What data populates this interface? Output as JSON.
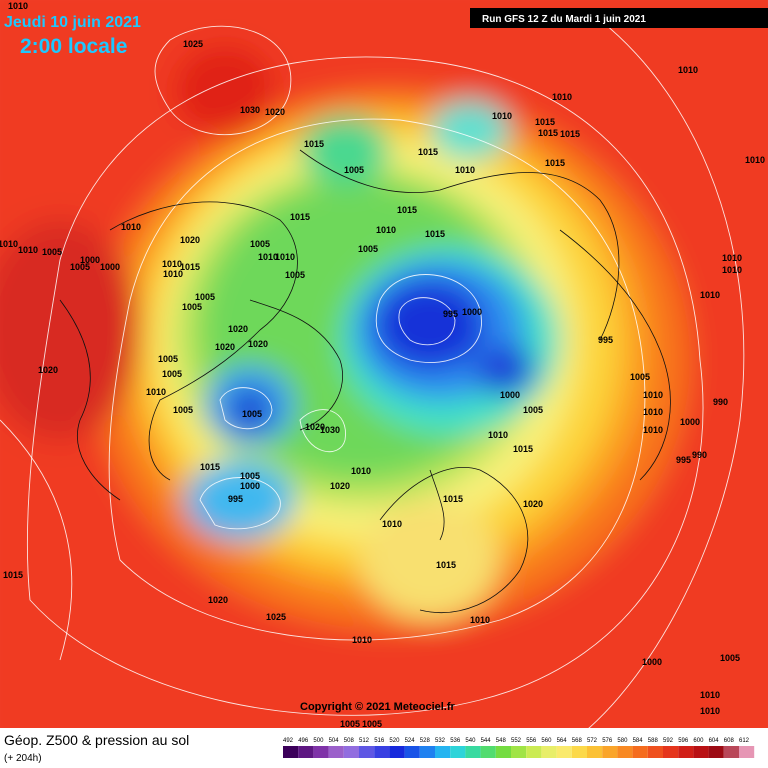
{
  "header": {
    "date": "Jeudi 10 juin 2021",
    "time": "2:00 locale",
    "run": "Run GFS 12 Z du Mardi 1 juin 2021"
  },
  "footer": {
    "title": "Géop. Z500 & pression au sol",
    "lead": "(+ 204h)",
    "copyright": "Copyright © 2021 Meteociel.fr"
  },
  "scale": [
    492,
    496,
    500,
    504,
    508,
    512,
    516,
    520,
    524,
    528,
    532,
    536,
    540,
    544,
    548,
    552,
    556,
    560,
    564,
    568,
    572,
    576,
    580,
    584,
    588,
    592,
    596,
    600,
    604,
    608,
    612
  ],
  "pressure_labels": [
    "1010",
    "1025",
    "1010",
    "1010",
    "1030",
    "1020",
    "1010",
    "1015",
    "1015",
    "1015",
    "1015",
    "1015",
    "1010",
    "1005",
    "1010",
    "1015",
    "1015",
    "1015",
    "1010",
    "1010",
    "1015",
    "1020",
    "1005",
    "1005",
    "1010",
    "1010",
    "1005",
    "1000",
    "1005",
    "1000",
    "1010",
    "1010",
    "1010",
    "1015",
    "1010",
    "1005",
    "1010",
    "1010",
    "1010",
    "1005",
    "1005",
    "995",
    "1000",
    "1020",
    "1020",
    "1020",
    "995",
    "1005",
    "1005",
    "1020",
    "1005",
    "1010",
    "1000",
    "1010",
    "990",
    "1005",
    "1005",
    "1005",
    "1010",
    "1000",
    "1020",
    "1030",
    "1010",
    "1010",
    "995",
    "990",
    "1015",
    "1015",
    "1005",
    "1010",
    "1000",
    "1020",
    "1015",
    "995",
    "1020",
    "1010",
    "1015",
    "1015",
    "1020",
    "1025",
    "1010",
    "1010",
    "1000",
    "1005",
    "1010",
    "1010",
    "1005",
    "1005"
  ]
}
